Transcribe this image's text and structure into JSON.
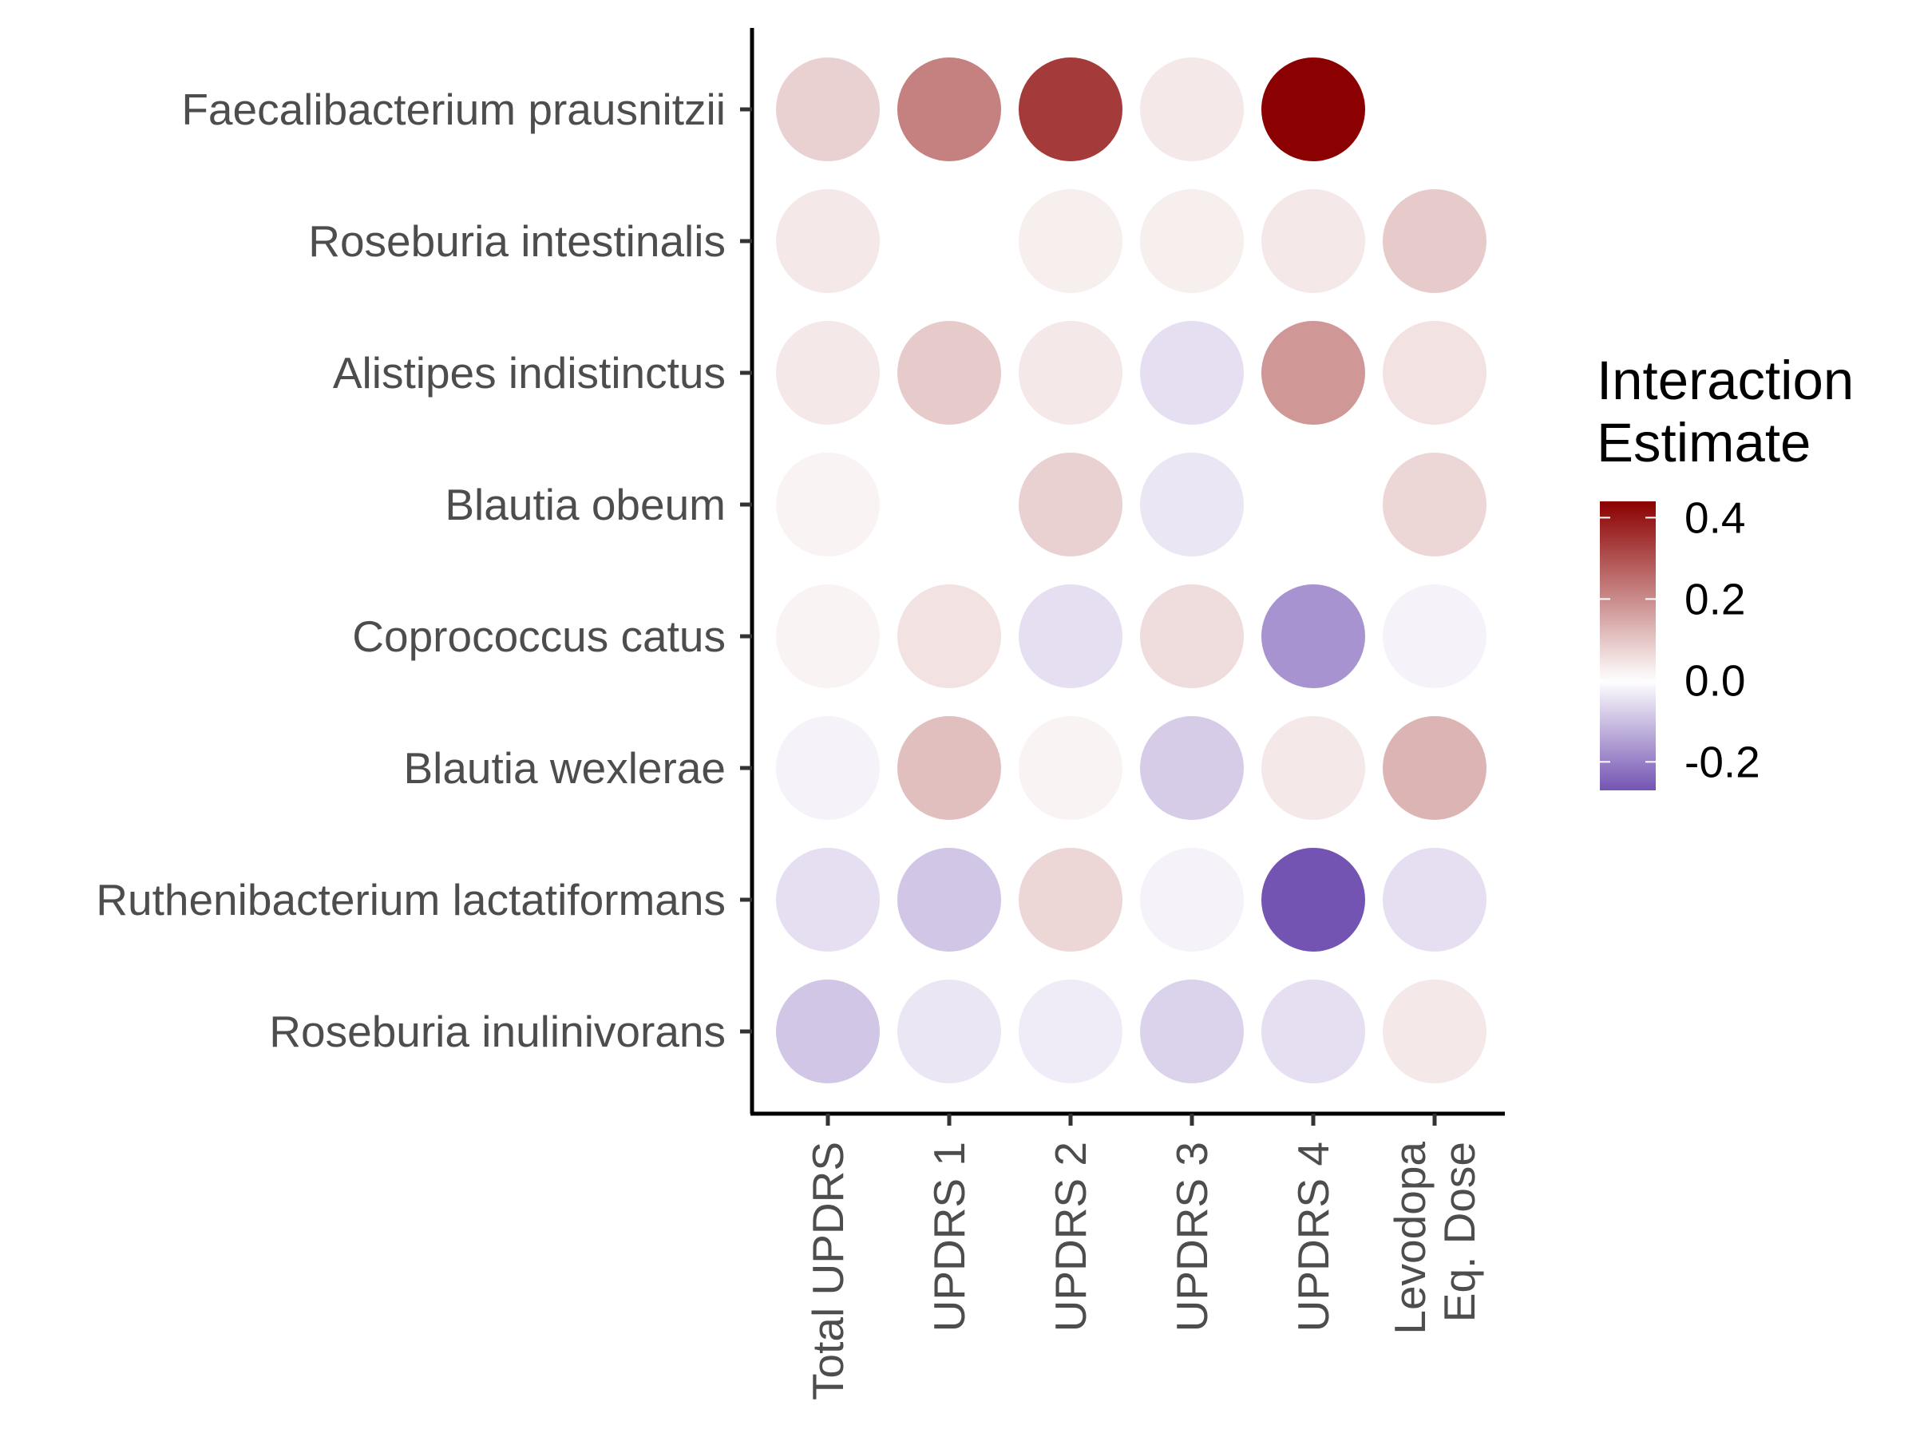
{
  "chart_data": {
    "type": "heatmap",
    "mark": "circle",
    "columns": [
      "Total UPDRS",
      "UPDRS 1",
      "UPDRS 2",
      "UPDRS 3",
      "UPDRS 4",
      "Levodopa\nEq. Dose"
    ],
    "rows": [
      "Faecalibacterium prausnitzii",
      "Roseburia intestinalis",
      "Alistipes indistinctus",
      "Blautia obeum",
      "Coprococcus catus",
      "Blautia wexlerae",
      "Ruthenibacterium lactatiformans",
      "Roseburia inulinivorans"
    ],
    "values": [
      [
        0.08,
        0.22,
        0.34,
        0.04,
        0.44,
        0.0
      ],
      [
        0.04,
        0.0,
        0.03,
        0.03,
        0.04,
        0.09
      ],
      [
        0.04,
        0.09,
        0.04,
        -0.05,
        0.18,
        0.05
      ],
      [
        0.02,
        0.0,
        0.08,
        -0.04,
        0.0,
        0.07
      ],
      [
        0.02,
        0.05,
        -0.05,
        0.06,
        -0.17,
        -0.02
      ],
      [
        -0.02,
        0.11,
        0.02,
        -0.08,
        0.04,
        0.13
      ],
      [
        -0.05,
        -0.09,
        0.07,
        -0.02,
        -0.27,
        -0.05
      ],
      [
        -0.09,
        -0.04,
        -0.03,
        -0.07,
        -0.05,
        0.04
      ]
    ],
    "legend": {
      "title": [
        "Interaction",
        "Estimate"
      ],
      "ticks": [
        0.4,
        0.2,
        0.0,
        -0.2
      ],
      "tick_labels": [
        "0.4",
        "0.2",
        "0.0",
        "-0.2"
      ],
      "range": [
        -0.27,
        0.44
      ],
      "placement": "right"
    },
    "colors": {
      "high": "#8b0000",
      "mid": "#ffffff",
      "low": "#7454b3"
    },
    "grid": false
  }
}
